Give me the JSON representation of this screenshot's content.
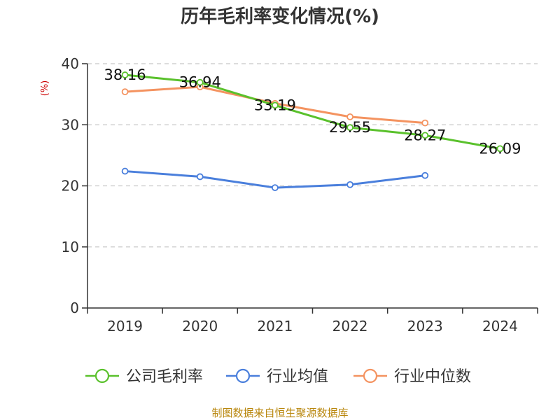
{
  "chart_data": {
    "type": "line",
    "title": "历年毛利率变化情况(%)",
    "ylabel": "(%)",
    "xlabel": "",
    "categories": [
      "2019",
      "2020",
      "2021",
      "2022",
      "2023",
      "2024"
    ],
    "ylim": [
      0,
      40
    ],
    "yticks": [
      "0",
      "10",
      "20",
      "30",
      "40"
    ],
    "grid": true,
    "legend_position": "bottom",
    "series": [
      {
        "name": "公司毛利率",
        "color": "#5ac12c",
        "values": [
          38.16,
          36.94,
          33.19,
          29.55,
          28.27,
          26.09
        ],
        "labels": [
          "38.16",
          "36.94",
          "33.19",
          "29.55",
          "28.27",
          "26.09"
        ]
      },
      {
        "name": "行业均值",
        "color": "#4a7fdc",
        "values": [
          22.4,
          21.5,
          19.7,
          20.2,
          21.7,
          null
        ]
      },
      {
        "name": "行业中位数",
        "color": "#f49360",
        "values": [
          35.4,
          36.2,
          33.5,
          31.3,
          30.3,
          null
        ]
      }
    ]
  },
  "source": "制图数据来自恒生聚源数据库"
}
